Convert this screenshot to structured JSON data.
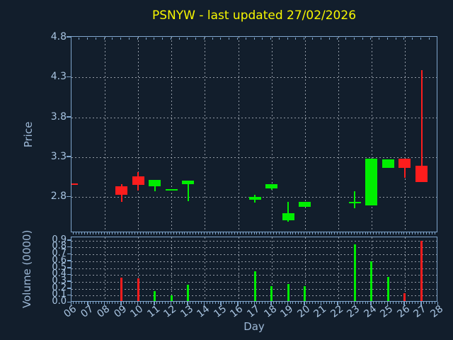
{
  "title": {
    "text": "PSNYW - last updated 27/02/2026"
  },
  "price_axis": {
    "label": "Price",
    "ticks": [
      "2.8",
      "3.3",
      "3.8",
      "4.3",
      "4.8"
    ]
  },
  "volume_axis": {
    "label": "Volume (0000)",
    "ticks": [
      "0.0",
      "0.1",
      "0.2",
      "0.3",
      "0.4",
      "0.5",
      "0.6",
      "0.7",
      "0.8",
      "0.9"
    ]
  },
  "x_axis": {
    "label": "Day",
    "ticks": [
      "06",
      "07",
      "08",
      "09",
      "10",
      "11",
      "12",
      "13",
      "14",
      "15",
      "16",
      "17",
      "18",
      "19",
      "20",
      "21",
      "22",
      "23",
      "24",
      "25",
      "26",
      "27",
      "28"
    ]
  },
  "colors": {
    "background": "#121e2c",
    "up": "#00ee00",
    "down": "#fd1d1d",
    "title": "#f7f700",
    "spine": "#7fa5cc",
    "tick_label": "#a9c5e2"
  },
  "chart_data": {
    "type": "candlestick",
    "title": "PSNYW - last updated 27/02/2026",
    "xlabel": "Day",
    "ylabel_price": "Price",
    "ylabel_volume": "Volume (0000)",
    "x_range": [
      6,
      28
    ],
    "price_ylim": [
      2.35,
      4.81
    ],
    "volume_ylim": [
      0,
      0.95
    ],
    "grid": "dotted, horizontal at price ticks and volume ticks, vertical at even days",
    "candles": [
      {
        "day": 6,
        "open": 2.97,
        "high": 2.97,
        "low": 2.95,
        "close": 2.95,
        "volume": 0.0
      },
      {
        "day": 9,
        "open": 2.94,
        "high": 2.96,
        "low": 2.74,
        "close": 2.83,
        "volume": 0.36
      },
      {
        "day": 10,
        "open": 3.06,
        "high": 3.11,
        "low": 2.88,
        "close": 2.95,
        "volume": 0.35
      },
      {
        "day": 11,
        "open": 2.94,
        "high": 3.02,
        "low": 2.87,
        "close": 3.02,
        "volume": 0.17
      },
      {
        "day": 12,
        "open": 2.88,
        "high": 2.9,
        "low": 2.88,
        "close": 2.9,
        "volume": 0.1
      },
      {
        "day": 13,
        "open": 2.96,
        "high": 3.01,
        "low": 2.75,
        "close": 3.01,
        "volume": 0.26
      },
      {
        "day": 17,
        "open": 2.77,
        "high": 2.83,
        "low": 2.73,
        "close": 2.8,
        "volume": 0.45
      },
      {
        "day": 18,
        "open": 2.91,
        "high": 2.96,
        "low": 2.89,
        "close": 2.96,
        "volume": 0.24
      },
      {
        "day": 19,
        "open": 2.51,
        "high": 2.74,
        "low": 2.49,
        "close": 2.6,
        "volume": 0.27
      },
      {
        "day": 20,
        "open": 2.68,
        "high": 2.74,
        "low": 2.68,
        "close": 2.74,
        "volume": 0.24
      },
      {
        "day": 23,
        "open": 2.72,
        "high": 2.87,
        "low": 2.66,
        "close": 2.74,
        "volume": 0.85
      },
      {
        "day": 24,
        "open": 2.7,
        "high": 3.28,
        "low": 2.7,
        "close": 3.28,
        "volume": 0.6
      },
      {
        "day": 25,
        "open": 3.17,
        "high": 3.27,
        "low": 3.17,
        "close": 3.27,
        "volume": 0.37
      },
      {
        "day": 26,
        "open": 3.28,
        "high": 3.28,
        "low": 3.04,
        "close": 3.17,
        "volume": 0.13
      },
      {
        "day": 27,
        "open": 3.19,
        "high": 4.39,
        "low": 2.99,
        "close": 2.99,
        "volume": 0.9
      }
    ]
  }
}
